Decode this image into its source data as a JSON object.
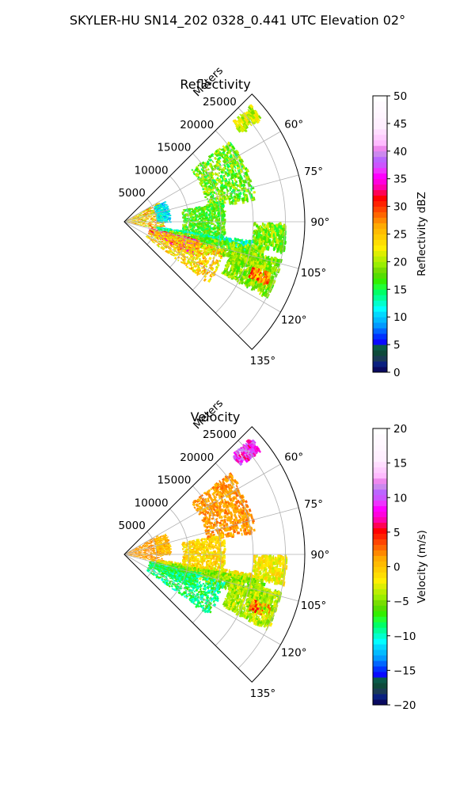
{
  "figure": {
    "title": "SKYLER-HU  SN14_202  0328_0.441 UTC Elevation 02°"
  },
  "chart_data": [
    {
      "type": "heatmap",
      "subtype": "polar-sector-radar-ppi",
      "title": "Reflectivity",
      "radial_axis_label": "Meters",
      "radial_ticks": [
        5000,
        10000,
        15000,
        20000,
        25000
      ],
      "radial_tick_labels": [
        "5000",
        "10000",
        "15000",
        "20000",
        "25000"
      ],
      "rlim": [
        0,
        28000
      ],
      "azimuth_ticks": [
        60,
        75,
        90,
        105,
        120,
        135
      ],
      "azimuth_tick_labels": [
        "60°",
        "75°",
        "90°",
        "105°",
        "120°",
        "135°"
      ],
      "azimuth_range": [
        45,
        135
      ],
      "grid": true,
      "colorbar": {
        "label": "Reflectivity dBZ",
        "range": [
          0,
          50
        ],
        "ticks": [
          0,
          5,
          10,
          15,
          20,
          25,
          30,
          35,
          40,
          45,
          50
        ],
        "tick_labels": [
          "0",
          "5",
          "10",
          "15",
          "20",
          "25",
          "30",
          "35",
          "40",
          "45",
          "50"
        ],
        "colors": [
          "#0a0a60",
          "#0a2080",
          "#1a3a55",
          "#0e4a3a",
          "#0a5a4a",
          "#0a0aff",
          "#0033ff",
          "#0066ff",
          "#0099ff",
          "#00bbff",
          "#00d8ff",
          "#00ffff",
          "#00ffcc",
          "#00ff99",
          "#00ff66",
          "#22ff33",
          "#33ee00",
          "#55dd00",
          "#77dd00",
          "#99ee00",
          "#bbee00",
          "#ddee00",
          "#ffee00",
          "#ffdd00",
          "#ffcc00",
          "#ffbb00",
          "#ffaa00",
          "#ff8800",
          "#ff6600",
          "#ff4400",
          "#ff2200",
          "#ff0000",
          "#ff0055",
          "#ff00aa",
          "#ff00dd",
          "#ff00ff",
          "#ee33ff",
          "#cc55ff",
          "#bb66ff",
          "#cc88ee",
          "#ee88ee",
          "#ffbbff",
          "#ffccff",
          "#ffddff",
          "#ffeeff",
          "#fff0ff",
          "#fff5ff",
          "#fff8ff",
          "#fffaff",
          "#ffffff"
        ]
      },
      "echo_regions": [
        {
          "az_range": [
            47,
            52
          ],
          "r_range": [
            22500,
            26500
          ],
          "value_range": [
            18,
            24
          ]
        },
        {
          "az_range": [
            52,
            80
          ],
          "r_range": [
            13000,
            20500
          ],
          "value_range": [
            14,
            22
          ]
        },
        {
          "az_range": [
            60,
            102
          ],
          "r_range": [
            100,
            6000
          ],
          "value_range": [
            18,
            30
          ]
        },
        {
          "az_range": [
            63,
            90
          ],
          "r_range": [
            5000,
            7000
          ],
          "value_range": [
            8,
            14
          ]
        },
        {
          "az_range": [
            78,
            100
          ],
          "r_range": [
            9000,
            15500
          ],
          "value_range": [
            14,
            20
          ]
        },
        {
          "az_range": [
            90,
            100
          ],
          "r_range": [
            20000,
            25000
          ],
          "value_range": [
            15,
            22
          ]
        },
        {
          "az_range": [
            98,
            103
          ],
          "r_range": [
            5000,
            20000
          ],
          "value_range": [
            10,
            16
          ]
        },
        {
          "az_range": [
            100,
            108
          ],
          "r_range": [
            7000,
            22000
          ],
          "value_range": [
            15,
            22
          ]
        },
        {
          "az_range": [
            103,
            115
          ],
          "r_range": [
            4000,
            12000
          ],
          "value_range": [
            25,
            38
          ]
        },
        {
          "az_range": [
            105,
            125
          ],
          "r_range": [
            4000,
            16000
          ],
          "value_range": [
            20,
            28
          ]
        },
        {
          "az_range": [
            103,
            117
          ],
          "r_range": [
            17000,
            25000
          ],
          "value_range": [
            16,
            22
          ]
        },
        {
          "az_range": [
            109,
            113
          ],
          "r_range": [
            21000,
            24000
          ],
          "value_range": [
            22,
            32
          ]
        }
      ]
    },
    {
      "type": "heatmap",
      "subtype": "polar-sector-radar-ppi",
      "title": "Velocity",
      "radial_axis_label": "Meters",
      "radial_ticks": [
        5000,
        10000,
        15000,
        20000,
        25000
      ],
      "radial_tick_labels": [
        "5000",
        "10000",
        "15000",
        "20000",
        "25000"
      ],
      "rlim": [
        0,
        28000
      ],
      "azimuth_ticks": [
        60,
        75,
        90,
        105,
        120,
        135
      ],
      "azimuth_tick_labels": [
        "60°",
        "75°",
        "90°",
        "105°",
        "120°",
        "135°"
      ],
      "azimuth_range": [
        45,
        135
      ],
      "grid": true,
      "colorbar": {
        "label": "Velocity (m/s)",
        "range": [
          -20,
          20
        ],
        "ticks": [
          -20,
          -15,
          -10,
          -5,
          0,
          5,
          10,
          15,
          20
        ],
        "tick_labels": [
          "−20",
          "−15",
          "−10",
          "−5",
          "0",
          "5",
          "10",
          "15",
          "20"
        ],
        "colors": [
          "#0a0a60",
          "#0a2080",
          "#1a3a55",
          "#0e4a3a",
          "#0a5a4a",
          "#0a0aff",
          "#0033ff",
          "#0066ff",
          "#0099ff",
          "#00bbff",
          "#00d8ff",
          "#00ffff",
          "#00ffcc",
          "#00ff99",
          "#00ff66",
          "#22ff33",
          "#33ee00",
          "#55dd00",
          "#77dd00",
          "#99ee00",
          "#bbee00",
          "#ddee00",
          "#ffee00",
          "#ffdd00",
          "#ffcc00",
          "#ffbb00",
          "#ffaa00",
          "#ff8800",
          "#ff6600",
          "#ff4400",
          "#ff2200",
          "#ff0000",
          "#ff0055",
          "#ff00aa",
          "#ff00dd",
          "#ff00ff",
          "#ee33ff",
          "#cc55ff",
          "#bb66ff",
          "#cc88ee",
          "#ee88ee",
          "#ffbbff",
          "#ffccff",
          "#ffddff",
          "#ffeeff",
          "#fff0ff",
          "#fff5ff",
          "#fff8ff",
          "#fffaff",
          "#ffffff"
        ]
      },
      "echo_regions": [
        {
          "az_range": [
            47,
            52
          ],
          "r_range": [
            22500,
            26500
          ],
          "value_range": [
            6,
            12
          ]
        },
        {
          "az_range": [
            52,
            80
          ],
          "r_range": [
            13000,
            20500
          ],
          "value_range": [
            0,
            3
          ]
        },
        {
          "az_range": [
            60,
            102
          ],
          "r_range": [
            100,
            6000
          ],
          "value_range": [
            0,
            3
          ]
        },
        {
          "az_range": [
            63,
            90
          ],
          "r_range": [
            5000,
            7000
          ],
          "value_range": [
            -1,
            2
          ]
        },
        {
          "az_range": [
            78,
            100
          ],
          "r_range": [
            9000,
            15500
          ],
          "value_range": [
            -3,
            1
          ]
        },
        {
          "az_range": [
            90,
            100
          ],
          "r_range": [
            20000,
            25000
          ],
          "value_range": [
            -4,
            0
          ]
        },
        {
          "az_range": [
            98,
            103
          ],
          "r_range": [
            5000,
            20000
          ],
          "value_range": [
            -4,
            1
          ]
        },
        {
          "az_range": [
            100,
            108
          ],
          "r_range": [
            7000,
            22000
          ],
          "value_range": [
            -7,
            -3
          ]
        },
        {
          "az_range": [
            103,
            115
          ],
          "r_range": [
            4000,
            12000
          ],
          "value_range": [
            -9,
            -5
          ]
        },
        {
          "az_range": [
            105,
            125
          ],
          "r_range": [
            4000,
            16000
          ],
          "value_range": [
            -11,
            -6
          ]
        },
        {
          "az_range": [
            103,
            117
          ],
          "r_range": [
            17000,
            25000
          ],
          "value_range": [
            -6,
            -2
          ]
        },
        {
          "az_range": [
            109,
            113
          ],
          "r_range": [
            21000,
            24000
          ],
          "value_range": [
            -7,
            6
          ]
        }
      ]
    }
  ]
}
